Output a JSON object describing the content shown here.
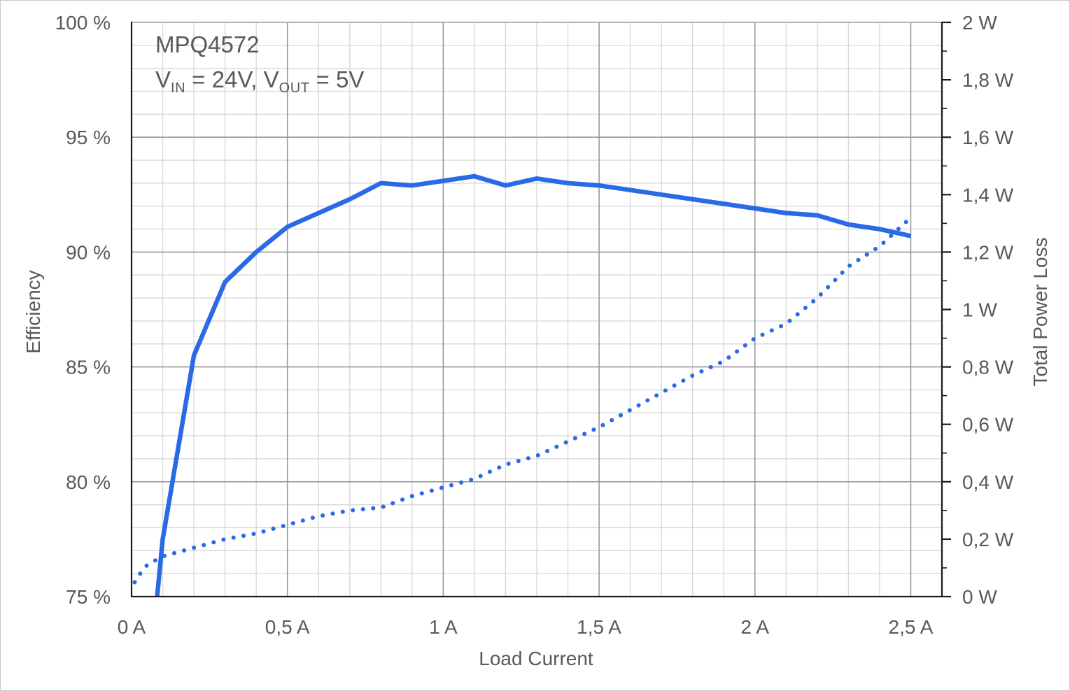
{
  "title": "MPQ4572",
  "subtitle_parts": [
    {
      "t": "V"
    },
    {
      "s": "IN"
    },
    {
      "t": " = 24V, V"
    },
    {
      "s": "OUT"
    },
    {
      "t": " = 5V"
    }
  ],
  "chart_data": {
    "type": "line",
    "title": "MPQ4572",
    "subtitle": "V_IN = 24V, V_OUT = 5V",
    "grid": true,
    "legend": "none",
    "x_axis": {
      "label": "Load Current",
      "min": 0,
      "max": 2.6,
      "minor_step": 0.1,
      "major_step": 0.5,
      "tick_values": [
        0,
        0.5,
        1,
        1.5,
        2,
        2.5
      ],
      "tick_labels": [
        "0 A",
        "0,5 A",
        "1 A",
        "1,5 A",
        "2 A",
        "2,5 A"
      ]
    },
    "y_left": {
      "label": "Efficiency",
      "min": 75,
      "max": 100,
      "minor_step": 1,
      "major_step": 5,
      "tick_values": [
        75,
        80,
        85,
        90,
        95,
        100
      ],
      "tick_labels": [
        "75 %",
        "80 %",
        "85 %",
        "90 %",
        "95 %",
        "100 %"
      ]
    },
    "y_right": {
      "label": "Total Power Loss",
      "min": 0,
      "max": 2,
      "minor_step": 0.1,
      "major_step": 0.2,
      "tick_values": [
        0,
        0.2,
        0.4,
        0.6,
        0.8,
        1,
        1.2,
        1.4,
        1.6,
        1.8,
        2
      ],
      "tick_labels": [
        "0 W",
        "0,2 W",
        "0,4 W",
        "0,6 W",
        "0,8 W",
        "1 W",
        "1,2 W",
        "1,4 W",
        "1,6 W",
        "1,8 W",
        "2 W"
      ]
    },
    "series": [
      {
        "name": "Efficiency",
        "axis": "left",
        "style": "solid",
        "unit": "%",
        "points": [
          [
            0.05,
            70.5
          ],
          [
            0.1,
            77.5
          ],
          [
            0.2,
            85.5
          ],
          [
            0.3,
            88.7
          ],
          [
            0.4,
            90.0
          ],
          [
            0.5,
            91.1
          ],
          [
            0.6,
            91.7
          ],
          [
            0.7,
            92.3
          ],
          [
            0.8,
            93.0
          ],
          [
            0.9,
            92.9
          ],
          [
            1.0,
            93.1
          ],
          [
            1.1,
            93.3
          ],
          [
            1.2,
            92.9
          ],
          [
            1.3,
            93.2
          ],
          [
            1.4,
            93.0
          ],
          [
            1.5,
            92.9
          ],
          [
            1.6,
            92.7
          ],
          [
            1.7,
            92.5
          ],
          [
            1.8,
            92.3
          ],
          [
            1.9,
            92.1
          ],
          [
            2.0,
            91.9
          ],
          [
            2.1,
            91.7
          ],
          [
            2.2,
            91.6
          ],
          [
            2.3,
            91.2
          ],
          [
            2.4,
            91.0
          ],
          [
            2.5,
            90.7
          ]
        ]
      },
      {
        "name": "Total Power Loss",
        "axis": "right",
        "style": "dotted",
        "unit": "W",
        "points": [
          [
            0.01,
            0.05
          ],
          [
            0.02,
            0.07
          ],
          [
            0.05,
            0.11
          ],
          [
            0.1,
            0.14
          ],
          [
            0.2,
            0.17
          ],
          [
            0.3,
            0.2
          ],
          [
            0.4,
            0.22
          ],
          [
            0.5,
            0.25
          ],
          [
            0.6,
            0.28
          ],
          [
            0.7,
            0.3
          ],
          [
            0.8,
            0.31
          ],
          [
            0.9,
            0.35
          ],
          [
            1.0,
            0.38
          ],
          [
            1.1,
            0.41
          ],
          [
            1.2,
            0.46
          ],
          [
            1.3,
            0.49
          ],
          [
            1.4,
            0.54
          ],
          [
            1.5,
            0.59
          ],
          [
            1.6,
            0.65
          ],
          [
            1.7,
            0.71
          ],
          [
            1.8,
            0.77
          ],
          [
            1.9,
            0.82
          ],
          [
            2.0,
            0.9
          ],
          [
            2.1,
            0.95
          ],
          [
            2.2,
            1.04
          ],
          [
            2.3,
            1.15
          ],
          [
            2.4,
            1.22
          ],
          [
            2.5,
            1.32
          ]
        ]
      }
    ],
    "colors": {
      "series_blue": "#2a6ae6",
      "minor_grid": "#d9d9d9",
      "major_grid": "#999999",
      "axis_line": "#1a1a1a",
      "text": "#595959"
    }
  }
}
